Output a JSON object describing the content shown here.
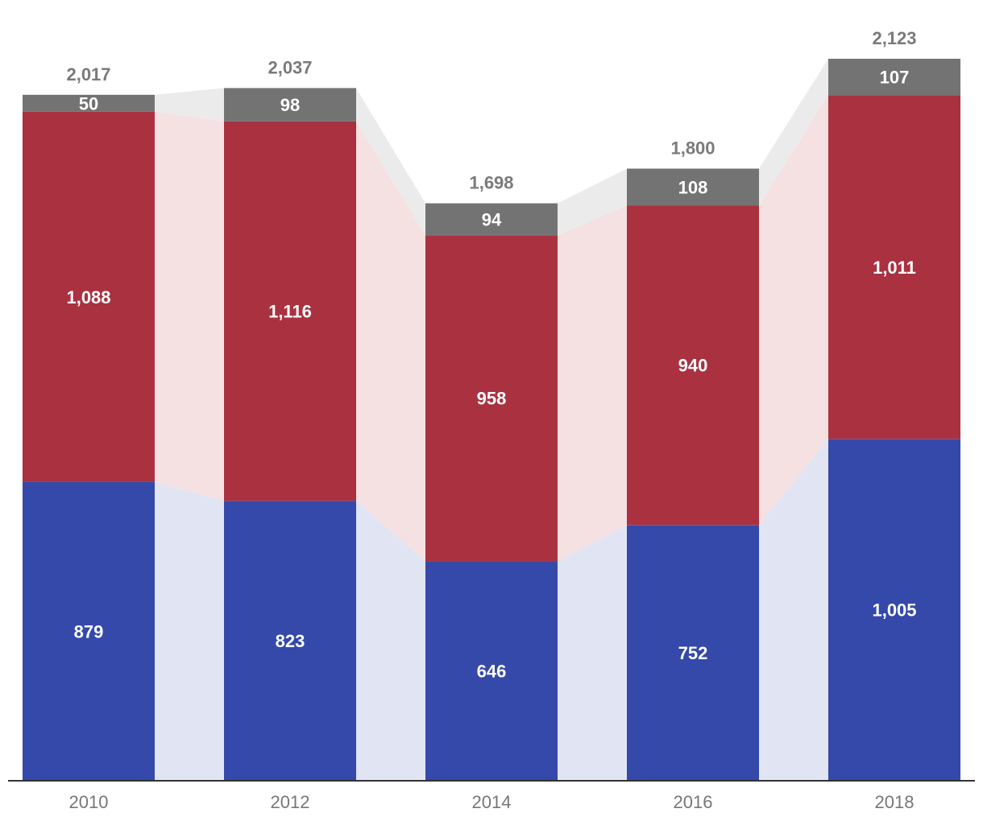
{
  "chart_data": {
    "type": "bar",
    "stacked": true,
    "categories": [
      "2010",
      "2012",
      "2014",
      "2016",
      "2018"
    ],
    "series": [
      {
        "key": "bottom",
        "values": [
          879,
          823,
          646,
          752,
          1005
        ],
        "labels": [
          "879",
          "823",
          "646",
          "752",
          "1,005"
        ],
        "color": "#3449a9",
        "band_color": "#e1e5f3"
      },
      {
        "key": "middle",
        "values": [
          1088,
          1116,
          958,
          940,
          1011
        ],
        "labels": [
          "1,088",
          "1,116",
          "958",
          "940",
          "1,011"
        ],
        "color": "#a93140",
        "band_color": "#f5e0e2"
      },
      {
        "key": "top",
        "values": [
          50,
          98,
          94,
          108,
          107
        ],
        "labels": [
          "50",
          "98",
          "94",
          "108",
          "107"
        ],
        "color": "#737373",
        "band_color": "#ebebeb"
      }
    ],
    "totals": [
      2017,
      2037,
      1698,
      1800,
      2123
    ],
    "total_labels": [
      "2,017",
      "2,037",
      "1,698",
      "1,800",
      "2,123"
    ],
    "ylim": [
      0,
      2200
    ],
    "grid": false,
    "legend": "none",
    "title": "",
    "xlabel": "",
    "ylabel": ""
  }
}
